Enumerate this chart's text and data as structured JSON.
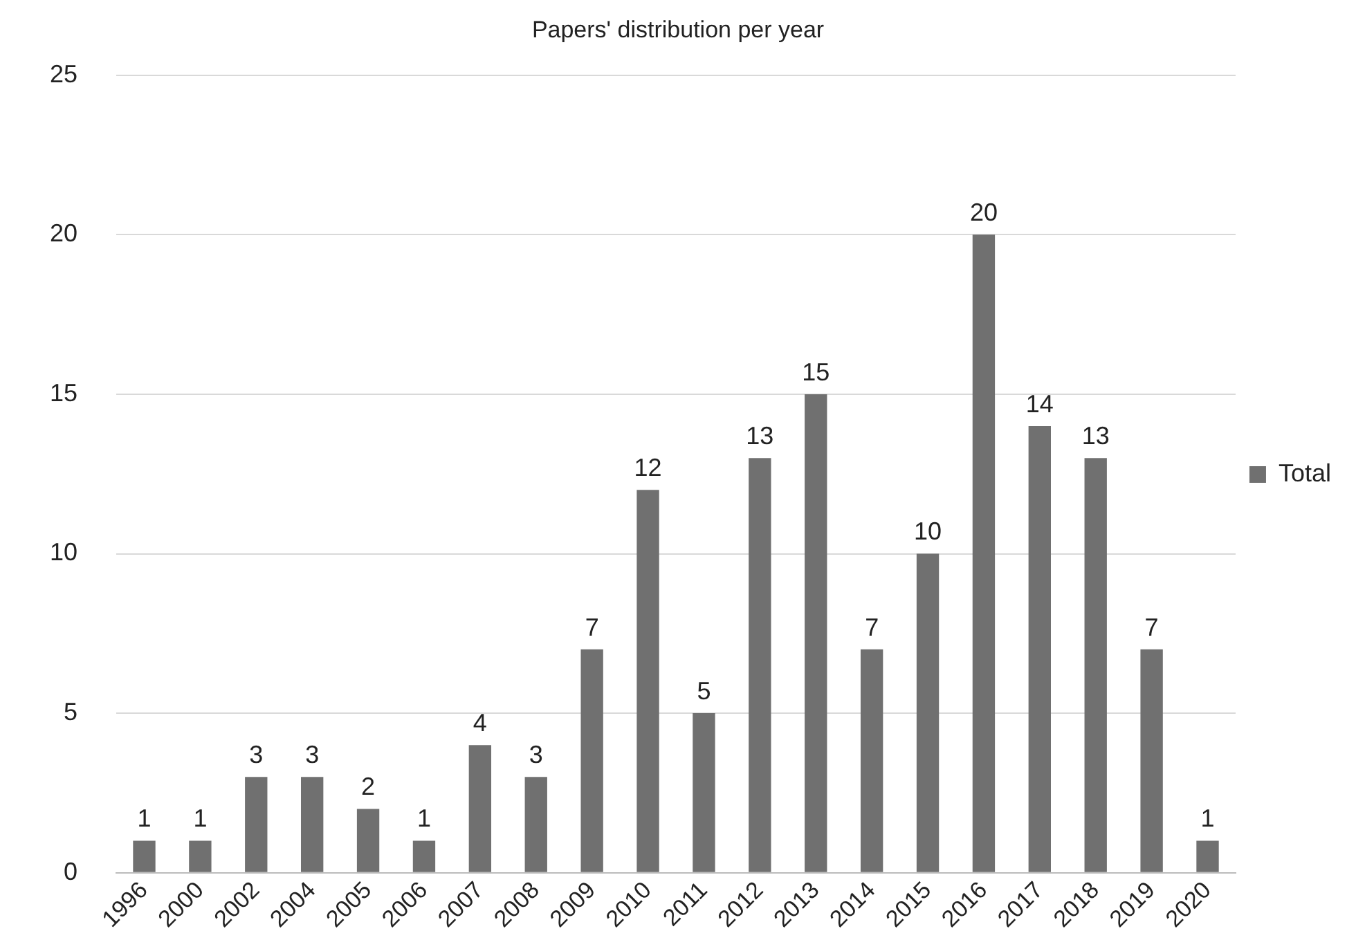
{
  "chart_data": {
    "type": "bar",
    "title": "Papers' distribution per year",
    "categories": [
      "1996",
      "2000",
      "2002",
      "2004",
      "2005",
      "2006",
      "2007",
      "2008",
      "2009",
      "2010",
      "2011",
      "2012",
      "2013",
      "2014",
      "2015",
      "2016",
      "2017",
      "2018",
      "2019",
      "2020"
    ],
    "series": [
      {
        "name": "Total",
        "color": "#707070",
        "values": [
          1,
          1,
          3,
          3,
          2,
          1,
          4,
          3,
          7,
          12,
          5,
          13,
          15,
          7,
          10,
          20,
          14,
          13,
          7,
          1
        ]
      }
    ],
    "ylim": [
      0,
      25
    ],
    "yticks": [
      0,
      5,
      10,
      15,
      20,
      25
    ],
    "grid": "y",
    "legend": "right",
    "data_labels": true
  }
}
